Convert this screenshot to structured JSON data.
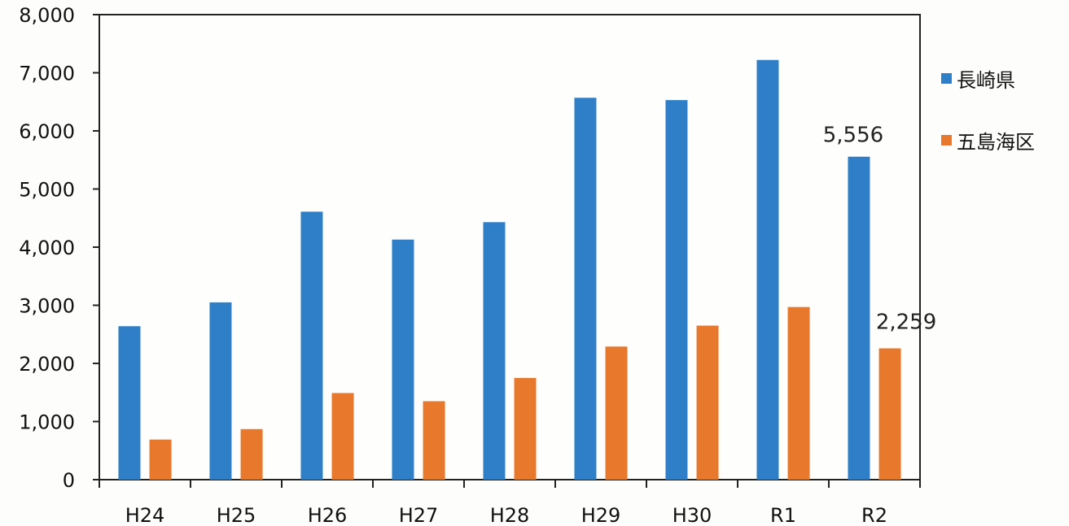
{
  "chart_data": {
    "type": "bar",
    "categories": [
      "H24",
      "H25",
      "H26",
      "H27",
      "H28",
      "H29",
      "H30",
      "R1",
      "R2"
    ],
    "series": [
      {
        "name": "長崎県",
        "color": "#2f7fc8",
        "values": [
          2640,
          3050,
          4610,
          4130,
          4430,
          6570,
          6530,
          7220,
          5556
        ]
      },
      {
        "name": "五島海区",
        "color": "#e8782b",
        "values": [
          690,
          870,
          1490,
          1350,
          1750,
          2290,
          2650,
          2970,
          2259
        ]
      }
    ],
    "ylim": [
      0,
      8000
    ],
    "yticks": [
      "0",
      "1,000",
      "2,000",
      "3,000",
      "4,000",
      "5,000",
      "6,000",
      "7,000",
      "8,000"
    ],
    "annotations": [
      {
        "text": "5,556",
        "category": "R2",
        "series": 0
      },
      {
        "text": "2,259",
        "category": "R2",
        "series": 1
      }
    ],
    "legend_position": "right",
    "grid": false
  }
}
